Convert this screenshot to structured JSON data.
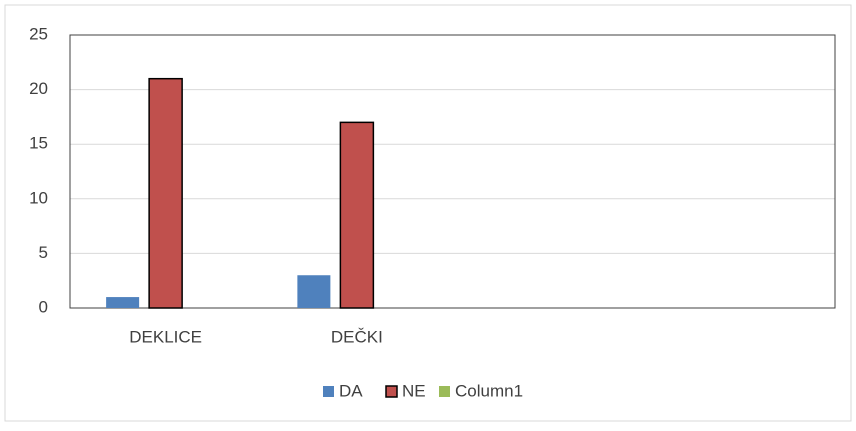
{
  "chart_data": {
    "type": "bar",
    "categories": [
      "DEKLICE",
      "DEČKI",
      null,
      null
    ],
    "series": [
      {
        "name": "DA",
        "color": "#4f81bd",
        "values": [
          1,
          3,
          null,
          null
        ]
      },
      {
        "name": "NE",
        "color": "#c0504d",
        "values": [
          21,
          17,
          null,
          null
        ]
      },
      {
        "name": "Column1",
        "color": "#9bbb59",
        "values": [
          null,
          null,
          null,
          null
        ]
      }
    ],
    "ylim": [
      0,
      25
    ],
    "yticks": [
      0,
      5,
      10,
      15,
      20,
      25
    ],
    "grid": true,
    "legend": "bottom"
  }
}
